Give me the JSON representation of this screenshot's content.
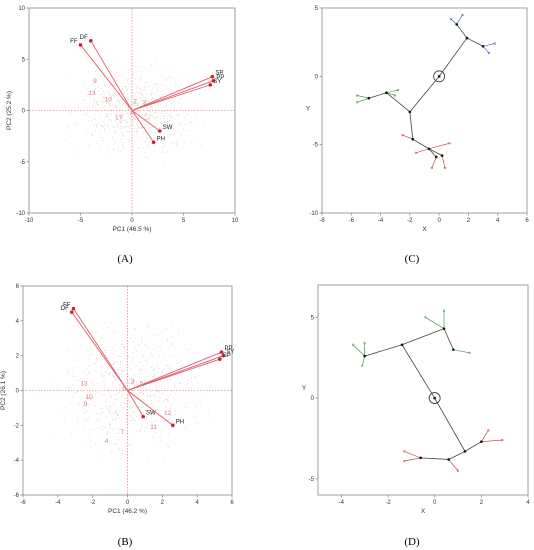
{
  "panels": [
    {
      "id": "A",
      "letter": "(A)"
    },
    {
      "id": "B",
      "letter": "(B)"
    },
    {
      "id": "C",
      "letter": "(C)"
    },
    {
      "id": "D",
      "letter": "(D)"
    }
  ],
  "chart_data": [
    {
      "panel": "A",
      "type": "scatter",
      "title": "",
      "xlabel": "PC1 (46.5 %)",
      "ylabel": "PC2 (25.2 %)",
      "xlim": [
        -10,
        10
      ],
      "ylim": [
        -10,
        10
      ],
      "xticks": [
        -10,
        -5,
        0,
        5,
        10
      ],
      "yticks": [
        -10,
        -5,
        0,
        5,
        10
      ],
      "xtick_labels": [
        "-10",
        "-5",
        "0",
        "5",
        "10"
      ],
      "ytick_labels": [
        "-10",
        "-5",
        "0",
        "5",
        "10"
      ],
      "vectors": [
        {
          "label": "DF",
          "x": -4.0,
          "y": 6.8
        },
        {
          "label": "FF",
          "x": -5.0,
          "y": 6.4
        },
        {
          "label": "SP",
          "x": 7.8,
          "y": 3.3
        },
        {
          "label": "PP",
          "x": 7.9,
          "y": 2.9
        },
        {
          "label": "SY",
          "x": 7.6,
          "y": 2.5
        },
        {
          "label": "SW",
          "x": 2.7,
          "y": -2.0
        },
        {
          "label": "PH",
          "x": 2.1,
          "y": -3.1
        }
      ],
      "observation_labels": [
        {
          "label": "9",
          "x": -3.6,
          "y": 2.7
        },
        {
          "label": "13",
          "x": -3.9,
          "y": 1.5
        },
        {
          "label": "10",
          "x": -2.3,
          "y": 0.9
        },
        {
          "label": "2",
          "x": 0.3,
          "y": 0.7
        },
        {
          "label": "3",
          "x": 1.2,
          "y": 0.6
        },
        {
          "label": "6",
          "x": 0.0,
          "y": -0.4
        },
        {
          "label": "17",
          "x": -1.3,
          "y": -0.9
        }
      ],
      "grid": false,
      "legend": "none"
    },
    {
      "panel": "B",
      "type": "scatter",
      "title": "",
      "xlabel": "PC1 (46.2 %)",
      "ylabel": "PC2 (26.1 %)",
      "xlim": [
        -6,
        6
      ],
      "ylim": [
        -6,
        6
      ],
      "xticks": [
        -6,
        -4,
        -2,
        0,
        2,
        4,
        6
      ],
      "yticks": [
        -6,
        -4,
        -2,
        0,
        2,
        4,
        6
      ],
      "xtick_labels": [
        "-6",
        "-4",
        "-2",
        "0",
        "2",
        "4",
        "6"
      ],
      "ytick_labels": [
        "-6",
        "-4",
        "-2",
        "0",
        "2",
        "4",
        "6"
      ],
      "vectors": [
        {
          "label": "FF",
          "x": -3.1,
          "y": 4.7
        },
        {
          "label": "DF",
          "x": -3.2,
          "y": 4.5
        },
        {
          "label": "PP",
          "x": 5.4,
          "y": 2.2
        },
        {
          "label": "SY",
          "x": 5.5,
          "y": 2.0
        },
        {
          "label": "SP",
          "x": 5.3,
          "y": 1.8
        },
        {
          "label": "SW",
          "x": 0.9,
          "y": -1.5
        },
        {
          "label": "PH",
          "x": 2.6,
          "y": -2.0
        }
      ],
      "observation_labels": [
        {
          "label": "13",
          "x": -2.5,
          "y": 0.3
        },
        {
          "label": "10",
          "x": -2.2,
          "y": -0.5
        },
        {
          "label": "9",
          "x": -2.4,
          "y": -0.9
        },
        {
          "label": "3",
          "x": 0.3,
          "y": 0.4
        },
        {
          "label": "5",
          "x": 0.8,
          "y": 0.3
        },
        {
          "label": "6",
          "x": -0.2,
          "y": 0.0
        },
        {
          "label": "12",
          "x": 2.3,
          "y": -1.4
        },
        {
          "label": "11",
          "x": 1.5,
          "y": -2.2
        },
        {
          "label": "7",
          "x": -0.3,
          "y": -2.5
        },
        {
          "label": "4",
          "x": -1.2,
          "y": -3.0
        }
      ],
      "grid": false,
      "legend": "none"
    },
    {
      "panel": "C",
      "type": "tree",
      "title": "",
      "xlabel": "X",
      "ylabel": "Y",
      "xlim": [
        -8,
        6
      ],
      "ylim": [
        -10,
        5
      ],
      "xticks": [
        -8,
        -6,
        -4,
        -2,
        0,
        2,
        4,
        6
      ],
      "yticks": [
        -10,
        -5,
        0,
        5
      ],
      "xtick_labels": [
        "-8",
        "-6",
        "-4",
        "-2",
        "0",
        "2",
        "4",
        "6"
      ],
      "ytick_labels": [
        "-10",
        "-5",
        "0",
        "5"
      ],
      "root": {
        "x": 0,
        "y": 0
      },
      "nodes": [
        {
          "id": "a",
          "x": 0,
          "y": 0
        },
        {
          "id": "b",
          "x": -2.0,
          "y": -2.6
        },
        {
          "id": "c",
          "x": -3.6,
          "y": -1.2
        },
        {
          "id": "d",
          "x": -4.8,
          "y": -1.6
        },
        {
          "id": "e",
          "x": -1.8,
          "y": -4.6
        },
        {
          "id": "f",
          "x": -0.7,
          "y": -5.3
        },
        {
          "id": "g",
          "x": -0.2,
          "y": -5.9
        },
        {
          "id": "h",
          "x": 0.2,
          "y": -5.8
        },
        {
          "id": "i",
          "x": 1.9,
          "y": 2.8
        },
        {
          "id": "j",
          "x": 1.2,
          "y": 3.8
        },
        {
          "id": "k",
          "x": 3.0,
          "y": 2.2
        }
      ],
      "edges": [
        [
          "a",
          "b"
        ],
        [
          "b",
          "c"
        ],
        [
          "c",
          "d"
        ],
        [
          "b",
          "e"
        ],
        [
          "e",
          "f"
        ],
        [
          "f",
          "g"
        ],
        [
          "f",
          "h"
        ],
        [
          "a",
          "i"
        ],
        [
          "i",
          "j"
        ],
        [
          "i",
          "k"
        ]
      ],
      "leaves": [
        {
          "from": "c",
          "x": -2.8,
          "y": -1.0,
          "color": "#2e8b3e"
        },
        {
          "from": "c",
          "x": -3.0,
          "y": -1.4,
          "color": "#2e8b3e"
        },
        {
          "from": "d",
          "x": -5.6,
          "y": -1.4,
          "color": "#2e8b3e"
        },
        {
          "from": "d",
          "x": -5.6,
          "y": -1.9,
          "color": "#2e8b3e"
        },
        {
          "from": "e",
          "x": -2.5,
          "y": -4.3,
          "color": "#c03030"
        },
        {
          "from": "f",
          "x": 0.7,
          "y": -4.9,
          "color": "#c03030"
        },
        {
          "from": "f",
          "x": -1.6,
          "y": -5.6,
          "color": "#c03030"
        },
        {
          "from": "g",
          "x": -0.5,
          "y": -6.7,
          "color": "#c03030"
        },
        {
          "from": "h",
          "x": 0.4,
          "y": -6.7,
          "color": "#c03030"
        },
        {
          "from": "j",
          "x": 0.8,
          "y": 4.2,
          "color": "#3050b0"
        },
        {
          "from": "j",
          "x": 1.6,
          "y": 4.5,
          "color": "#3050b0"
        },
        {
          "from": "k",
          "x": 3.8,
          "y": 2.4,
          "color": "#3050b0"
        },
        {
          "from": "k",
          "x": 3.4,
          "y": 1.7,
          "color": "#3050b0"
        }
      ]
    },
    {
      "panel": "D",
      "type": "tree",
      "title": "",
      "xlabel": "X",
      "ylabel": "Y",
      "xlim": [
        -5,
        4
      ],
      "ylim": [
        -6,
        7
      ],
      "xticks": [
        -4,
        -2,
        0,
        2,
        4
      ],
      "yticks": [
        -5,
        0,
        5
      ],
      "xtick_labels": [
        "-4",
        "-2",
        "0",
        "2",
        "4"
      ],
      "ytick_labels": [
        "-5",
        "0",
        "5"
      ],
      "root": {
        "x": 0,
        "y": 0
      },
      "nodes": [
        {
          "id": "a",
          "x": 0,
          "y": 0
        },
        {
          "id": "b",
          "x": -1.4,
          "y": 3.3
        },
        {
          "id": "c",
          "x": -3.0,
          "y": 2.6
        },
        {
          "id": "d",
          "x": 0.4,
          "y": 4.3
        },
        {
          "id": "e",
          "x": 0.8,
          "y": 3.0
        },
        {
          "id": "f",
          "x": 1.3,
          "y": -3.3
        },
        {
          "id": "g",
          "x": 0.6,
          "y": -3.8
        },
        {
          "id": "h",
          "x": -0.6,
          "y": -3.7
        },
        {
          "id": "i",
          "x": 2.0,
          "y": -2.7
        }
      ],
      "edges": [
        [
          "a",
          "b"
        ],
        [
          "b",
          "c"
        ],
        [
          "b",
          "d"
        ],
        [
          "d",
          "e"
        ],
        [
          "a",
          "f"
        ],
        [
          "f",
          "g"
        ],
        [
          "g",
          "h"
        ],
        [
          "f",
          "i"
        ]
      ],
      "leaves": [
        {
          "from": "c",
          "x": -3.5,
          "y": 3.3,
          "color": "#2e8b3e"
        },
        {
          "from": "c",
          "x": -3.0,
          "y": 3.4,
          "color": "#2e8b3e"
        },
        {
          "from": "c",
          "x": -3.1,
          "y": 2.0,
          "color": "#2e8b3e"
        },
        {
          "from": "d",
          "x": 0.4,
          "y": 5.4,
          "color": "#2e8b3e"
        },
        {
          "from": "d",
          "x": -0.4,
          "y": 5.0,
          "color": "#2e8b3e"
        },
        {
          "from": "e",
          "x": 1.5,
          "y": 2.8,
          "color": "#2e8b3e"
        },
        {
          "from": "h",
          "x": -1.3,
          "y": -3.3,
          "color": "#c03030"
        },
        {
          "from": "h",
          "x": -1.3,
          "y": -3.9,
          "color": "#c03030"
        },
        {
          "from": "g",
          "x": 1.0,
          "y": -4.5,
          "color": "#c03030"
        },
        {
          "from": "i",
          "x": 2.3,
          "y": -2.0,
          "color": "#c03030"
        },
        {
          "from": "i",
          "x": 2.9,
          "y": -2.6,
          "color": "#c03030"
        }
      ]
    }
  ]
}
